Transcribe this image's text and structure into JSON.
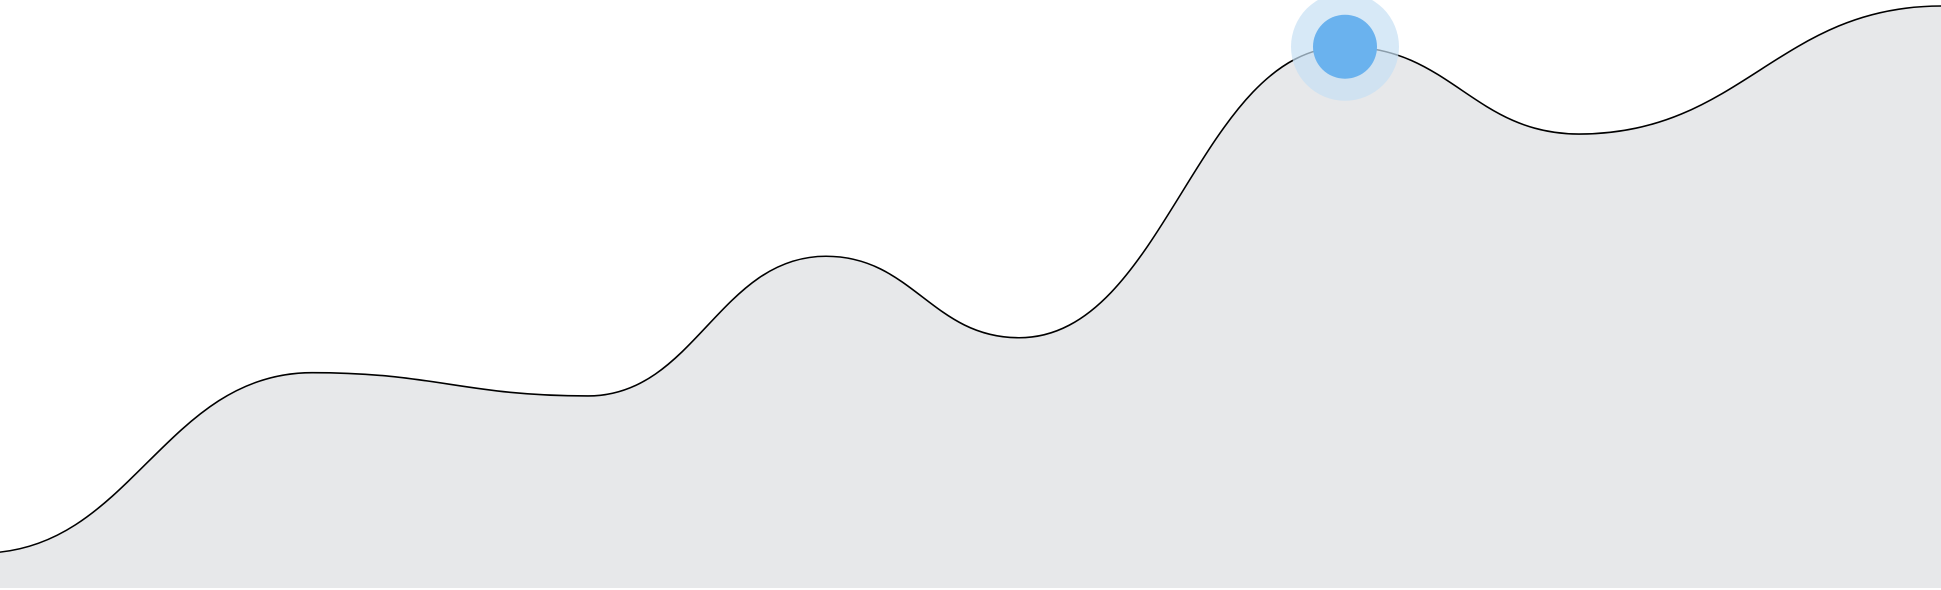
{
  "chart_data": {
    "type": "area",
    "title": "",
    "xlabel": "",
    "ylabel": "",
    "grid": false,
    "legend": "none",
    "x": [
      0,
      1,
      2,
      3,
      4,
      5,
      6,
      7,
      8,
      9
    ],
    "ylim": [
      0,
      100
    ],
    "series": [
      {
        "values": [
          6,
          37,
          33,
          57,
          43,
          93,
          78,
          100
        ],
        "x": [
          0,
          1,
          2,
          3,
          4,
          5,
          6,
          7
        ]
      }
    ],
    "highlight_index": 5,
    "colors": {
      "fill": "#e7e8ea",
      "line": "#000000",
      "marker": "#6ab2ee",
      "marker_halo": "#c6dff3"
    }
  }
}
